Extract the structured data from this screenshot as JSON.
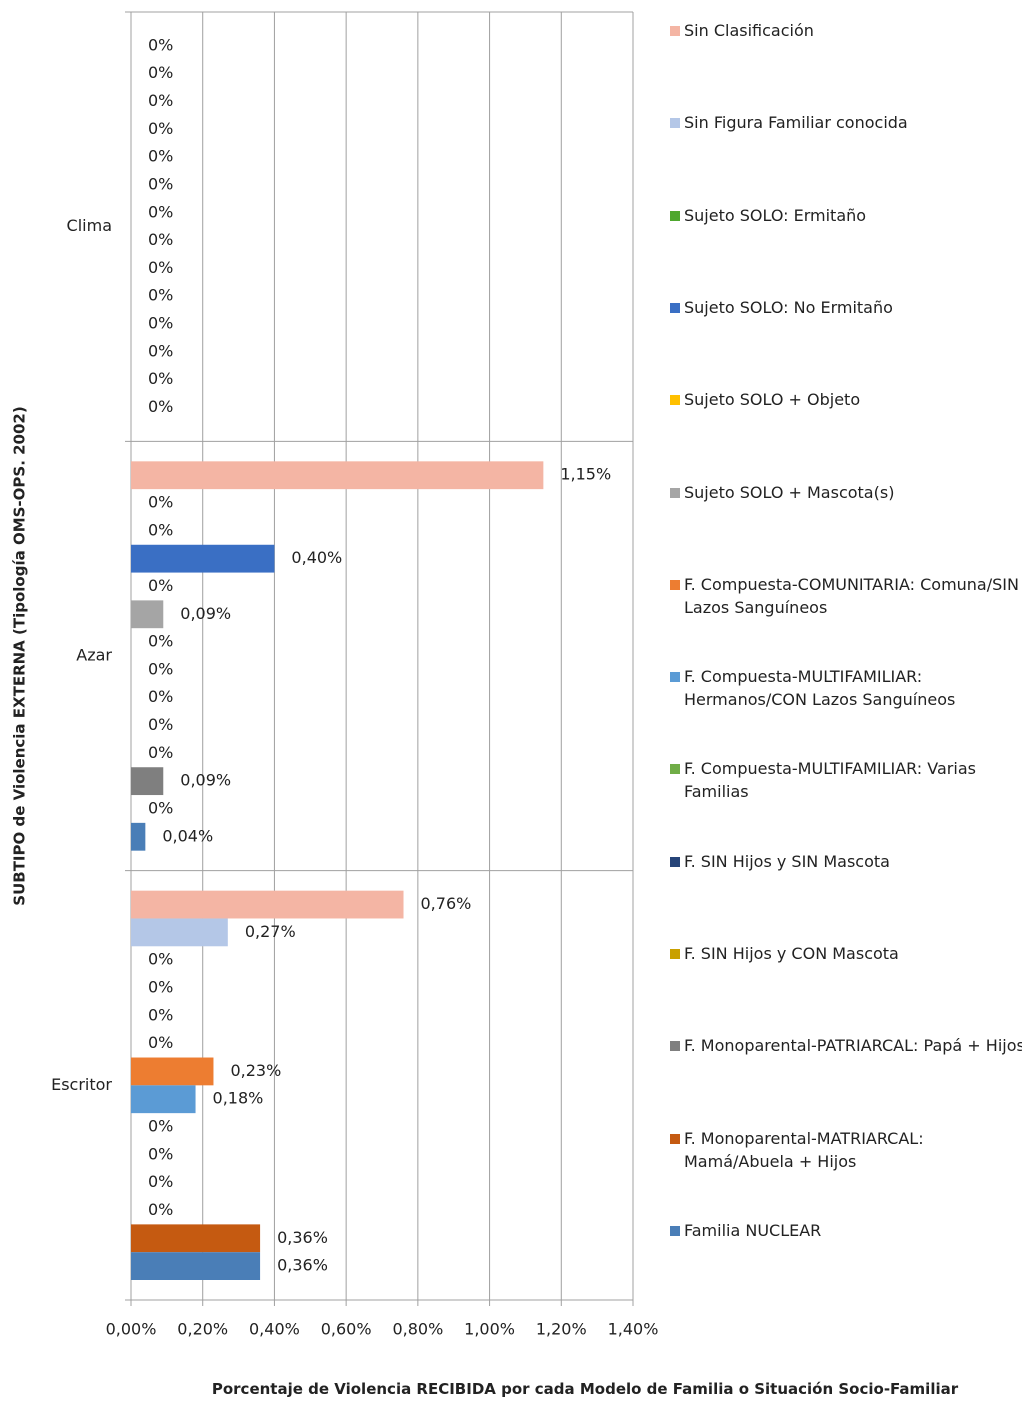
{
  "chart_data": {
    "type": "bar",
    "orientation": "horizontal",
    "xlabel": "Porcentaje de Violencia RECIBIDA por cada Modelo de Familia o Situación Socio-Familiar",
    "ylabel": "SUBTIPO  de Violencia EXTERNA (Tipología OMS-OPS. 2002)",
    "categories": [
      "Clima",
      "Azar",
      "Escritor"
    ],
    "xlim": [
      0,
      1.4
    ],
    "xticks": [
      {
        "value": 0,
        "label": "0,00%"
      },
      {
        "value": 0.2,
        "label": "0,20%"
      },
      {
        "value": 0.4,
        "label": "0,40%"
      },
      {
        "value": 0.6,
        "label": "0,60%"
      },
      {
        "value": 0.8,
        "label": "0,80%"
      },
      {
        "value": 1.0,
        "label": "1,00%"
      },
      {
        "value": 1.2,
        "label": "1,20%"
      },
      {
        "value": 1.4,
        "label": "1,40%"
      }
    ],
    "grid": true,
    "legend": "right",
    "series": [
      {
        "name": "Sin Clasificación",
        "color": "#f4b5a4",
        "values": [
          0,
          1.15,
          0.76
        ],
        "value_labels": [
          "0%",
          "1,15%",
          "0,76%"
        ]
      },
      {
        "name": "Sin Figura Familiar conocida",
        "color": "#b4c7e7",
        "values": [
          0,
          0,
          0.27
        ],
        "value_labels": [
          "0%",
          "0%",
          "0,27%"
        ]
      },
      {
        "name": "Sujeto SOLO: Ermitaño",
        "color": "#4ea72e",
        "values": [
          0,
          0,
          0
        ],
        "value_labels": [
          "0%",
          "0%",
          "0%"
        ]
      },
      {
        "name": "Sujeto SOLO: No Ermitaño",
        "color": "#3a6fc4",
        "values": [
          0,
          0.4,
          0
        ],
        "value_labels": [
          "0%",
          "0,40%",
          "0%"
        ]
      },
      {
        "name": "Sujeto SOLO + Objeto",
        "color": "#ffc000",
        "values": [
          0,
          0,
          0
        ],
        "value_labels": [
          "0%",
          "0%",
          "0%"
        ]
      },
      {
        "name": "Sujeto SOLO + Mascota(s)",
        "color": "#a5a5a5",
        "values": [
          0,
          0.09,
          0
        ],
        "value_labels": [
          "0%",
          "0,09%",
          "0%"
        ]
      },
      {
        "name": "F. Compuesta-COMUNITARIA: Comuna/SIN Lazos Sanguíneos",
        "color": "#ed7d31",
        "values": [
          0,
          0,
          0.23
        ],
        "value_labels": [
          "0%",
          "0%",
          "0,23%"
        ]
      },
      {
        "name": "F. Compuesta-MULTIFAMILIAR: Hermanos/CON Lazos Sanguíneos",
        "color": "#5b9bd5",
        "values": [
          0,
          0,
          0.18
        ],
        "value_labels": [
          "0%",
          "0%",
          "0,18%"
        ]
      },
      {
        "name": "F. Compuesta-MULTIFAMILIAR: Varias Familias",
        "color": "#70ad47",
        "values": [
          0,
          0,
          0
        ],
        "value_labels": [
          "0%",
          "0%",
          "0%"
        ]
      },
      {
        "name": "F. SIN Hijos y SIN Mascota",
        "color": "#264478",
        "values": [
          0,
          0,
          0
        ],
        "value_labels": [
          "0%",
          "0%",
          "0%"
        ]
      },
      {
        "name": "F. SIN Hijos y CON Mascota",
        "color": "#c9a000",
        "values": [
          0,
          0,
          0
        ],
        "value_labels": [
          "0%",
          "0%",
          "0%"
        ]
      },
      {
        "name": "F. Monoparental-PATRIARCAL: Papá + Hijos",
        "color": "#7f7f7f",
        "values": [
          0,
          0.09,
          0
        ],
        "value_labels": [
          "0%",
          "0,09%",
          "0%"
        ]
      },
      {
        "name": "F. Monoparental-MATRIARCAL: Mamá/Abuela + Hijos",
        "color": "#c55a11",
        "values": [
          0,
          0,
          0.36
        ],
        "value_labels": [
          "0%",
          "0%",
          "0,36%"
        ]
      },
      {
        "name": "Familia NUCLEAR",
        "color": "#4a7eb7",
        "values": [
          0,
          0.04,
          0.36
        ],
        "value_labels": [
          "0%",
          "0,04%",
          "0,36%"
        ]
      }
    ]
  }
}
